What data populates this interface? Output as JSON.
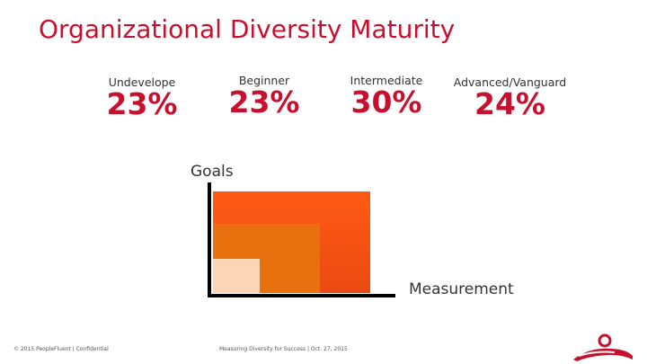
{
  "title": "Organizational Diversity Maturity",
  "levels": [
    {
      "label": "Undevelope",
      "percent": "23%"
    },
    {
      "label": "Beginner",
      "percent": "23%"
    },
    {
      "label": "Intermediate",
      "percent": "30%"
    },
    {
      "label": "Advanced/Vanguard",
      "percent": "24%"
    }
  ],
  "diagram": {
    "y_label": "Goals",
    "x_label": "Measurement"
  },
  "footer": {
    "left": "© 2015 PeopleFluent | Confidential",
    "center": "Measuring Diversity for Success | Oct. 27, 2015"
  },
  "colors": {
    "accent": "#c8102e",
    "box_large": "#f04e17",
    "box_medium": "#e8700f",
    "box_small": "#fbd5b5"
  }
}
